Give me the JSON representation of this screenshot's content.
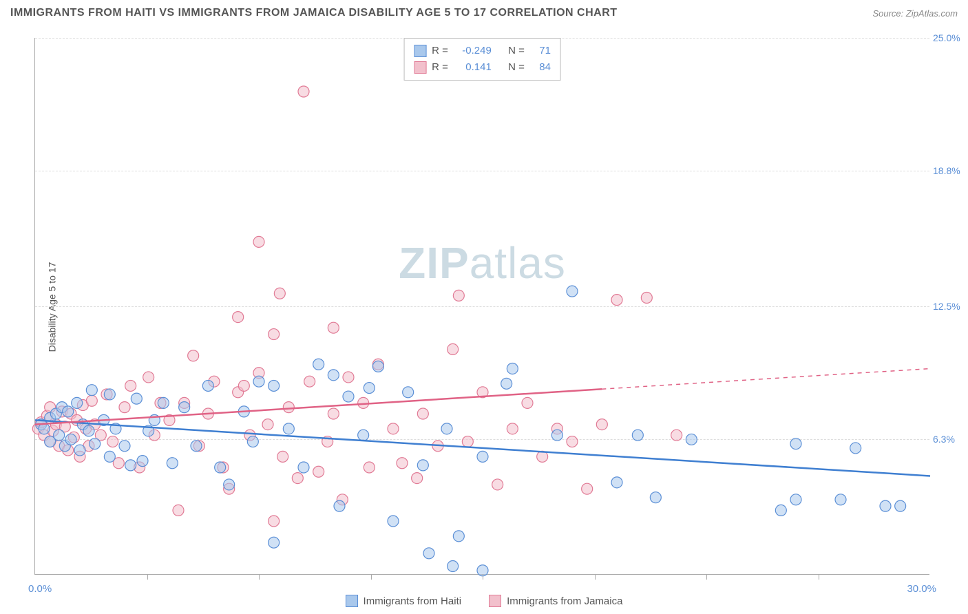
{
  "title": "IMMIGRANTS FROM HAITI VS IMMIGRANTS FROM JAMAICA DISABILITY AGE 5 TO 17 CORRELATION CHART",
  "source": "Source: ZipAtlas.com",
  "watermark_bold": "ZIP",
  "watermark_light": "atlas",
  "y_axis_label": "Disability Age 5 to 17",
  "chart": {
    "type": "scatter",
    "xlim": [
      0,
      30
    ],
    "ylim": [
      0,
      25
    ],
    "x_origin_label": "0.0%",
    "x_max_label": "30.0%",
    "x_tick_positions": [
      3.75,
      7.5,
      11.25,
      15.0,
      18.75,
      22.5,
      26.25
    ],
    "y_ticks": [
      {
        "v": 6.3,
        "label": "6.3%"
      },
      {
        "v": 12.5,
        "label": "12.5%"
      },
      {
        "v": 18.8,
        "label": "18.8%"
      },
      {
        "v": 25.0,
        "label": "25.0%"
      }
    ],
    "background_color": "#ffffff",
    "grid_color": "#dddddd",
    "marker_radius": 8,
    "marker_opacity": 0.55,
    "line_width": 2.5
  },
  "series": [
    {
      "key": "haiti",
      "label": "Immigrants from Haiti",
      "fill": "#a9c8ec",
      "stroke": "#5b8fd6",
      "line_color": "#3f7fd1",
      "r": -0.249,
      "r_label": "-0.249",
      "n": 71,
      "reg_line": {
        "x1": 0,
        "y1": 7.2,
        "x2": 30,
        "y2": 4.6,
        "solid_until_x": 30
      },
      "points": [
        [
          0.2,
          7.0
        ],
        [
          0.3,
          6.8
        ],
        [
          0.5,
          7.3
        ],
        [
          0.5,
          6.2
        ],
        [
          0.7,
          7.5
        ],
        [
          0.8,
          6.5
        ],
        [
          0.9,
          7.8
        ],
        [
          1.0,
          6.0
        ],
        [
          1.1,
          7.6
        ],
        [
          1.2,
          6.3
        ],
        [
          1.4,
          8.0
        ],
        [
          1.5,
          5.8
        ],
        [
          1.6,
          7.0
        ],
        [
          1.8,
          6.7
        ],
        [
          1.9,
          8.6
        ],
        [
          2.0,
          6.1
        ],
        [
          2.3,
          7.2
        ],
        [
          2.5,
          5.5
        ],
        [
          2.5,
          8.4
        ],
        [
          2.7,
          6.8
        ],
        [
          3.0,
          6.0
        ],
        [
          3.2,
          5.1
        ],
        [
          3.4,
          8.2
        ],
        [
          3.6,
          5.3
        ],
        [
          3.8,
          6.7
        ],
        [
          4.0,
          7.2
        ],
        [
          4.3,
          8.0
        ],
        [
          4.6,
          5.2
        ],
        [
          5.0,
          7.8
        ],
        [
          5.4,
          6.0
        ],
        [
          5.8,
          8.8
        ],
        [
          6.2,
          5.0
        ],
        [
          6.5,
          4.2
        ],
        [
          7.0,
          7.6
        ],
        [
          7.3,
          6.2
        ],
        [
          7.5,
          9.0
        ],
        [
          8.0,
          8.8
        ],
        [
          8.0,
          1.5
        ],
        [
          8.5,
          6.8
        ],
        [
          9.0,
          5.0
        ],
        [
          9.5,
          9.8
        ],
        [
          10.0,
          9.3
        ],
        [
          10.2,
          3.2
        ],
        [
          10.5,
          8.3
        ],
        [
          11.0,
          6.5
        ],
        [
          11.2,
          8.7
        ],
        [
          11.5,
          9.7
        ],
        [
          12.0,
          2.5
        ],
        [
          12.5,
          8.5
        ],
        [
          13.0,
          5.1
        ],
        [
          13.2,
          1.0
        ],
        [
          13.8,
          6.8
        ],
        [
          14.0,
          0.4
        ],
        [
          14.2,
          1.8
        ],
        [
          15.0,
          5.5
        ],
        [
          15.0,
          0.2
        ],
        [
          15.8,
          8.9
        ],
        [
          16.0,
          9.6
        ],
        [
          17.5,
          6.5
        ],
        [
          18.0,
          13.2
        ],
        [
          19.5,
          4.3
        ],
        [
          20.2,
          6.5
        ],
        [
          20.8,
          3.6
        ],
        [
          22.0,
          6.3
        ],
        [
          25.0,
          3.0
        ],
        [
          25.5,
          6.1
        ],
        [
          25.5,
          3.5
        ],
        [
          27.0,
          3.5
        ],
        [
          27.5,
          5.9
        ],
        [
          28.5,
          3.2
        ],
        [
          29.0,
          3.2
        ]
      ]
    },
    {
      "key": "jamaica",
      "label": "Immigrants from Jamaica",
      "fill": "#f2c0cc",
      "stroke": "#e17a95",
      "line_color": "#e06285",
      "r": 0.141,
      "r_label": "0.141",
      "n": 84,
      "reg_line": {
        "x1": 0,
        "y1": 7.0,
        "x2": 30,
        "y2": 9.6,
        "solid_until_x": 19
      },
      "points": [
        [
          0.1,
          6.8
        ],
        [
          0.2,
          7.1
        ],
        [
          0.3,
          6.5
        ],
        [
          0.4,
          7.4
        ],
        [
          0.5,
          6.2
        ],
        [
          0.5,
          7.8
        ],
        [
          0.6,
          6.7
        ],
        [
          0.7,
          7.0
        ],
        [
          0.8,
          6.0
        ],
        [
          0.9,
          7.6
        ],
        [
          1.0,
          6.9
        ],
        [
          1.1,
          5.8
        ],
        [
          1.2,
          7.5
        ],
        [
          1.3,
          6.4
        ],
        [
          1.4,
          7.2
        ],
        [
          1.5,
          5.5
        ],
        [
          1.6,
          7.9
        ],
        [
          1.7,
          6.8
        ],
        [
          1.8,
          6.0
        ],
        [
          1.9,
          8.1
        ],
        [
          2.0,
          7.0
        ],
        [
          2.2,
          6.5
        ],
        [
          2.4,
          8.4
        ],
        [
          2.6,
          6.2
        ],
        [
          2.8,
          5.2
        ],
        [
          3.0,
          7.8
        ],
        [
          3.2,
          8.8
        ],
        [
          3.5,
          5.0
        ],
        [
          3.8,
          9.2
        ],
        [
          4.0,
          6.5
        ],
        [
          4.2,
          8.0
        ],
        [
          4.5,
          7.2
        ],
        [
          4.8,
          3.0
        ],
        [
          5.0,
          8.0
        ],
        [
          5.3,
          10.2
        ],
        [
          5.5,
          6.0
        ],
        [
          5.8,
          7.5
        ],
        [
          6.0,
          9.0
        ],
        [
          6.3,
          5.0
        ],
        [
          6.5,
          4.0
        ],
        [
          6.8,
          8.5
        ],
        [
          7.0,
          8.8
        ],
        [
          6.8,
          12.0
        ],
        [
          7.2,
          6.5
        ],
        [
          7.5,
          9.4
        ],
        [
          7.5,
          15.5
        ],
        [
          7.8,
          7.0
        ],
        [
          8.0,
          11.2
        ],
        [
          8.0,
          2.5
        ],
        [
          8.2,
          13.1
        ],
        [
          8.3,
          5.5
        ],
        [
          8.5,
          7.8
        ],
        [
          8.8,
          4.5
        ],
        [
          9.0,
          22.5
        ],
        [
          9.2,
          9.0
        ],
        [
          9.5,
          4.8
        ],
        [
          9.8,
          6.2
        ],
        [
          10.0,
          7.5
        ],
        [
          10.0,
          11.5
        ],
        [
          10.3,
          3.5
        ],
        [
          10.5,
          9.2
        ],
        [
          11.0,
          8.0
        ],
        [
          11.2,
          5.0
        ],
        [
          11.5,
          9.8
        ],
        [
          12.0,
          6.8
        ],
        [
          12.3,
          5.2
        ],
        [
          12.8,
          4.5
        ],
        [
          13.0,
          7.5
        ],
        [
          13.5,
          6.0
        ],
        [
          14.0,
          10.5
        ],
        [
          14.2,
          13.0
        ],
        [
          14.5,
          6.2
        ],
        [
          15.0,
          8.5
        ],
        [
          15.5,
          4.2
        ],
        [
          16.0,
          6.8
        ],
        [
          16.5,
          8.0
        ],
        [
          17.0,
          5.5
        ],
        [
          17.5,
          6.8
        ],
        [
          18.0,
          6.2
        ],
        [
          18.5,
          4.0
        ],
        [
          19.0,
          7.0
        ],
        [
          19.5,
          12.8
        ],
        [
          20.5,
          12.9
        ],
        [
          21.5,
          6.5
        ]
      ]
    }
  ],
  "corr_legend_labels": {
    "r": "R =",
    "n": "N ="
  }
}
